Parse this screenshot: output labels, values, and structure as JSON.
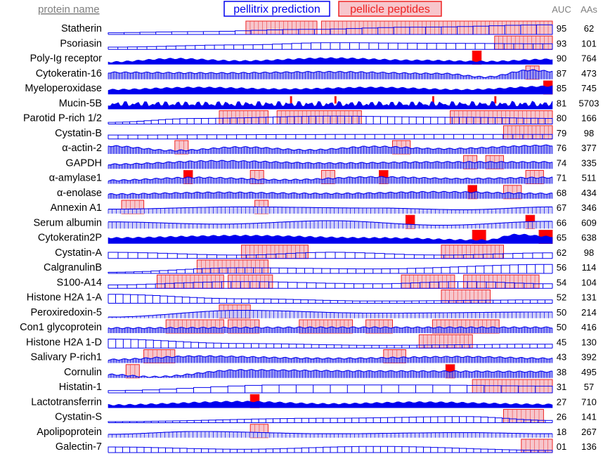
{
  "chart_data": {
    "type": "area",
    "header": {
      "protein_col": "protein name",
      "legend_prediction": "pellitrix prediction",
      "legend_peptides": "pellicle peptides",
      "auc_col": "AUC",
      "aas_col": "AAs"
    },
    "colors": {
      "prediction": "#0000ee",
      "peptide_fill": "#f7c6cc",
      "peptide_stroke": "#ee2222",
      "peptide_solid": "#ff0000",
      "header_gray": "#808080"
    },
    "x_domain": [
      0,
      1
    ],
    "proteins": [
      {
        "name": "Statherin",
        "auc": "95",
        "aas": "62",
        "style": "open",
        "pep": [
          [
            0.31,
            0.47
          ],
          [
            0.48,
            1.0
          ]
        ],
        "prof": [
          [
            0,
            0.15
          ],
          [
            0.2,
            0.25
          ],
          [
            0.45,
            0.45
          ],
          [
            0.7,
            0.65
          ],
          [
            1,
            0.85
          ]
        ]
      },
      {
        "name": "Psoriasin",
        "auc": "93",
        "aas": "101",
        "style": "open",
        "pep": [
          [
            0.87,
            1.0
          ]
        ],
        "prof": [
          [
            0,
            0.2
          ],
          [
            0.3,
            0.4
          ],
          [
            0.5,
            0.6
          ],
          [
            0.7,
            0.55
          ],
          [
            1,
            0.5
          ]
        ]
      },
      {
        "name": "Poly-Ig receptor",
        "auc": "90",
        "aas": "764",
        "style": "solid",
        "pep": [
          [
            0.82,
            0.84
          ]
        ],
        "prof": [
          [
            0,
            0.2
          ],
          [
            0.15,
            0.5
          ],
          [
            0.3,
            0.3
          ],
          [
            0.5,
            0.55
          ],
          [
            0.7,
            0.35
          ],
          [
            0.85,
            0.25
          ],
          [
            1,
            0.45
          ]
        ]
      },
      {
        "name": "Cytokeratin-16",
        "auc": "87",
        "aas": "473",
        "style": "dense",
        "pep": [
          [
            0.94,
            0.97
          ]
        ],
        "prof": [
          [
            0,
            0.6
          ],
          [
            0.25,
            0.55
          ],
          [
            0.5,
            0.65
          ],
          [
            0.75,
            0.5
          ],
          [
            0.85,
            0.2
          ],
          [
            0.95,
            0.8
          ],
          [
            1,
            0.7
          ]
        ]
      },
      {
        "name": "Myeloperoxidase",
        "auc": "85",
        "aas": "745",
        "style": "solid",
        "pep": [
          [
            0.98,
            1.0
          ]
        ],
        "prof": [
          [
            0,
            0.4
          ],
          [
            0.2,
            0.6
          ],
          [
            0.4,
            0.45
          ],
          [
            0.6,
            0.6
          ],
          [
            0.8,
            0.4
          ],
          [
            1,
            0.7
          ]
        ]
      },
      {
        "name": "Mucin-5B",
        "auc": "81",
        "aas": "5703",
        "style": "spiky",
        "pep": [
          [
            0.41,
            0.413
          ],
          [
            0.51,
            0.513
          ],
          [
            0.73,
            0.733
          ],
          [
            0.87,
            0.873
          ]
        ],
        "prof": [
          [
            0,
            0.5
          ],
          [
            0.5,
            0.6
          ],
          [
            1,
            0.5
          ]
        ]
      },
      {
        "name": "Parotid P-rich 1/2",
        "auc": "80",
        "aas": "166",
        "style": "open",
        "pep": [
          [
            0.25,
            0.36
          ],
          [
            0.38,
            0.57
          ],
          [
            0.77,
            1.0
          ]
        ],
        "prof": [
          [
            0,
            0.15
          ],
          [
            0.2,
            0.5
          ],
          [
            0.5,
            0.7
          ],
          [
            0.8,
            0.6
          ],
          [
            1,
            0.5
          ]
        ]
      },
      {
        "name": "Cystatin-B",
        "auc": "79",
        "aas": "98",
        "style": "open",
        "pep": [
          [
            0.89,
            1.0
          ]
        ],
        "prof": [
          [
            0,
            0.35
          ],
          [
            0.5,
            0.4
          ],
          [
            1,
            0.4
          ]
        ]
      },
      {
        "name": "α-actin-2",
        "auc": "76",
        "aas": "377",
        "style": "dense",
        "pep": [
          [
            0.15,
            0.18
          ],
          [
            0.64,
            0.68
          ]
        ],
        "prof": [
          [
            0,
            0.7
          ],
          [
            0.15,
            0.3
          ],
          [
            0.3,
            0.6
          ],
          [
            0.45,
            0.35
          ],
          [
            0.6,
            0.65
          ],
          [
            0.75,
            0.45
          ],
          [
            1,
            0.75
          ]
        ]
      },
      {
        "name": "GAPDH",
        "auc": "74",
        "aas": "335",
        "style": "dense",
        "pep": [
          [
            0.8,
            0.83
          ],
          [
            0.85,
            0.89
          ]
        ],
        "prof": [
          [
            0,
            0.4
          ],
          [
            0.25,
            0.7
          ],
          [
            0.5,
            0.5
          ],
          [
            0.75,
            0.6
          ],
          [
            1,
            0.6
          ]
        ]
      },
      {
        "name": "α-amylase1",
        "auc": "71",
        "aas": "511",
        "style": "dense",
        "pep": [
          [
            0.17,
            0.19
          ],
          [
            0.32,
            0.35
          ],
          [
            0.48,
            0.51
          ],
          [
            0.61,
            0.63
          ],
          [
            0.94,
            0.98
          ]
        ],
        "prof": [
          [
            0,
            0.3
          ],
          [
            0.2,
            0.55
          ],
          [
            0.4,
            0.35
          ],
          [
            0.6,
            0.6
          ],
          [
            0.8,
            0.45
          ],
          [
            1,
            0.55
          ]
        ]
      },
      {
        "name": "α-enolase",
        "auc": "68",
        "aas": "434",
        "style": "dense",
        "pep": [
          [
            0.81,
            0.83
          ],
          [
            0.89,
            0.93
          ]
        ],
        "prof": [
          [
            0,
            0.4
          ],
          [
            0.25,
            0.55
          ],
          [
            0.5,
            0.45
          ],
          [
            0.75,
            0.6
          ],
          [
            1,
            0.45
          ]
        ]
      },
      {
        "name": "Annexin A1",
        "auc": "67",
        "aas": "346",
        "style": "hatch",
        "pep": [
          [
            0.03,
            0.08
          ],
          [
            0.33,
            0.36
          ]
        ],
        "prof": [
          [
            0,
            0.4
          ],
          [
            0.3,
            0.6
          ],
          [
            0.6,
            0.5
          ],
          [
            0.8,
            0.35
          ],
          [
            1,
            0.6
          ]
        ]
      },
      {
        "name": "Serum albumin",
        "auc": "66",
        "aas": "609",
        "style": "hatch",
        "pep": [
          [
            0.67,
            0.69
          ],
          [
            0.94,
            0.96
          ]
        ],
        "prof": [
          [
            0,
            0.6
          ],
          [
            0.25,
            0.4
          ],
          [
            0.5,
            0.7
          ],
          [
            0.75,
            0.3
          ],
          [
            1,
            0.65
          ]
        ]
      },
      {
        "name": "Cytokeratin2P",
        "auc": "65",
        "aas": "638",
        "style": "solid",
        "pep": [
          [
            0.82,
            0.85
          ],
          [
            0.97,
            1.0
          ]
        ],
        "prof": [
          [
            0,
            0.5
          ],
          [
            0.3,
            0.7
          ],
          [
            0.6,
            0.5
          ],
          [
            0.85,
            0.3
          ],
          [
            0.92,
            0.8
          ],
          [
            1,
            0.6
          ]
        ]
      },
      {
        "name": "Cystatin-A",
        "auc": "62",
        "aas": "98",
        "style": "open",
        "pep": [
          [
            0.3,
            0.45
          ],
          [
            0.75,
            0.89
          ]
        ],
        "prof": [
          [
            0,
            0.55
          ],
          [
            0.3,
            0.3
          ],
          [
            0.5,
            0.55
          ],
          [
            0.75,
            0.3
          ],
          [
            1,
            0.5
          ]
        ]
      },
      {
        "name": "CalgranulinB",
        "auc": "56",
        "aas": "114",
        "style": "open",
        "pep": [
          [
            0.2,
            0.36
          ]
        ],
        "prof": [
          [
            0,
            0.1
          ],
          [
            0.3,
            0.5
          ],
          [
            0.6,
            0.4
          ],
          [
            1,
            0.8
          ]
        ]
      },
      {
        "name": "S100-A14",
        "auc": "54",
        "aas": "104",
        "style": "open",
        "pep": [
          [
            0.11,
            0.26
          ],
          [
            0.27,
            0.37
          ],
          [
            0.66,
            0.78
          ],
          [
            0.8,
            0.97
          ]
        ],
        "prof": [
          [
            0,
            0.3
          ],
          [
            0.3,
            0.6
          ],
          [
            0.6,
            0.4
          ],
          [
            0.8,
            0.6
          ],
          [
            1,
            0.4
          ]
        ]
      },
      {
        "name": "Histone H2A 1-A",
        "auc": "52",
        "aas": "131",
        "style": "open",
        "pep": [
          [
            0.75,
            0.86
          ]
        ],
        "prof": [
          [
            0,
            0.8
          ],
          [
            0.3,
            0.4
          ],
          [
            0.6,
            0.2
          ],
          [
            1,
            0.3
          ]
        ]
      },
      {
        "name": "Peroxiredoxin-5",
        "auc": "50",
        "aas": "214",
        "style": "hatch",
        "pep": [
          [
            0.25,
            0.32
          ]
        ],
        "prof": [
          [
            0,
            0.1
          ],
          [
            0.3,
            0.7
          ],
          [
            0.6,
            0.45
          ],
          [
            1,
            0.55
          ]
        ]
      },
      {
        "name": "Con1 glycoprotein",
        "auc": "50",
        "aas": "416",
        "style": "dense",
        "pep": [
          [
            0.13,
            0.26
          ],
          [
            0.27,
            0.34
          ],
          [
            0.43,
            0.55
          ],
          [
            0.58,
            0.64
          ],
          [
            0.73,
            0.88
          ]
        ],
        "prof": [
          [
            0,
            0.45
          ],
          [
            0.5,
            0.5
          ],
          [
            1,
            0.5
          ]
        ]
      },
      {
        "name": "Histone H2A 1-D",
        "auc": "45",
        "aas": "130",
        "style": "open",
        "pep": [
          [
            0.7,
            0.82
          ]
        ],
        "prof": [
          [
            0,
            0.8
          ],
          [
            0.3,
            0.4
          ],
          [
            0.6,
            0.25
          ],
          [
            1,
            0.35
          ]
        ]
      },
      {
        "name": "Salivary P-rich1",
        "auc": "43",
        "aas": "392",
        "style": "dense",
        "pep": [
          [
            0.08,
            0.15
          ],
          [
            0.62,
            0.67
          ]
        ],
        "prof": [
          [
            0,
            0.3
          ],
          [
            0.2,
            0.6
          ],
          [
            0.5,
            0.4
          ],
          [
            0.8,
            0.55
          ],
          [
            1,
            0.4
          ]
        ]
      },
      {
        "name": "Cornulin",
        "auc": "38",
        "aas": "495",
        "style": "dense",
        "pep": [
          [
            0.04,
            0.07
          ],
          [
            0.76,
            0.78
          ]
        ],
        "prof": [
          [
            0,
            0.3
          ],
          [
            0.1,
            0.1
          ],
          [
            0.3,
            0.7
          ],
          [
            0.6,
            0.6
          ],
          [
            1,
            0.55
          ]
        ]
      },
      {
        "name": "Histatin-1",
        "auc": "31",
        "aas": "57",
        "style": "open",
        "pep": [
          [
            0.82,
            1.0
          ]
        ],
        "prof": [
          [
            0,
            0.2
          ],
          [
            0.4,
            0.7
          ],
          [
            0.7,
            0.7
          ],
          [
            1,
            0.6
          ]
        ]
      },
      {
        "name": "Lactotransferrin",
        "auc": "27",
        "aas": "710",
        "style": "solid",
        "pep": [
          [
            0.32,
            0.34
          ]
        ],
        "prof": [
          [
            0,
            0.25
          ],
          [
            0.3,
            0.55
          ],
          [
            0.5,
            0.35
          ],
          [
            0.7,
            0.5
          ],
          [
            1,
            0.3
          ]
        ]
      },
      {
        "name": "Cystatin-S",
        "auc": "26",
        "aas": "141",
        "style": "open",
        "pep": [
          [
            0.89,
            0.98
          ]
        ],
        "prof": [
          [
            0,
            0.1
          ],
          [
            0.5,
            0.4
          ],
          [
            0.8,
            0.55
          ],
          [
            1,
            0.2
          ]
        ]
      },
      {
        "name": "Apolipoprotein",
        "auc": "18",
        "aas": "267",
        "style": "hatch",
        "pep": [
          [
            0.32,
            0.36
          ]
        ],
        "prof": [
          [
            0,
            0.3
          ],
          [
            0.2,
            0.55
          ],
          [
            0.5,
            0.35
          ],
          [
            0.8,
            0.45
          ],
          [
            1,
            0.35
          ]
        ]
      },
      {
        "name": "Galectin-7",
        "auc": "01",
        "aas": "136",
        "style": "open",
        "pep": [
          [
            0.93,
            1.0
          ]
        ],
        "prof": [
          [
            0,
            0.5
          ],
          [
            0.3,
            0.3
          ],
          [
            0.6,
            0.55
          ],
          [
            1,
            0.2
          ]
        ]
      }
    ]
  }
}
